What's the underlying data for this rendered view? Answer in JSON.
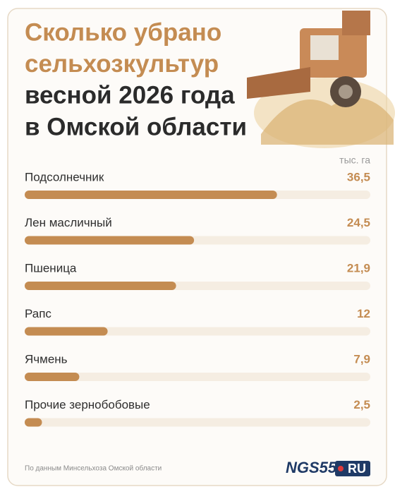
{
  "chart_data": {
    "type": "bar",
    "title": [
      "Сколько убрано",
      "сельхозкультур",
      "весной 2026 года",
      "в Омской области"
    ],
    "unit": "тыс. га",
    "categories": [
      "Подсолнечник",
      "Лен масличный",
      "Пшеница",
      "Рапс",
      "Ячмень",
      "Прочие зернобобовые"
    ],
    "values": [
      36.5,
      24.5,
      21.9,
      12,
      7.9,
      2.5
    ],
    "value_labels": [
      "36,5",
      "24,5",
      "21,9",
      "12",
      "7,9",
      "2,5"
    ],
    "color": "#c48c52",
    "xlim": [
      0,
      50
    ],
    "source": "По данным Минсельхоза Омской области",
    "logo": [
      "NGS55",
      "RU"
    ]
  }
}
